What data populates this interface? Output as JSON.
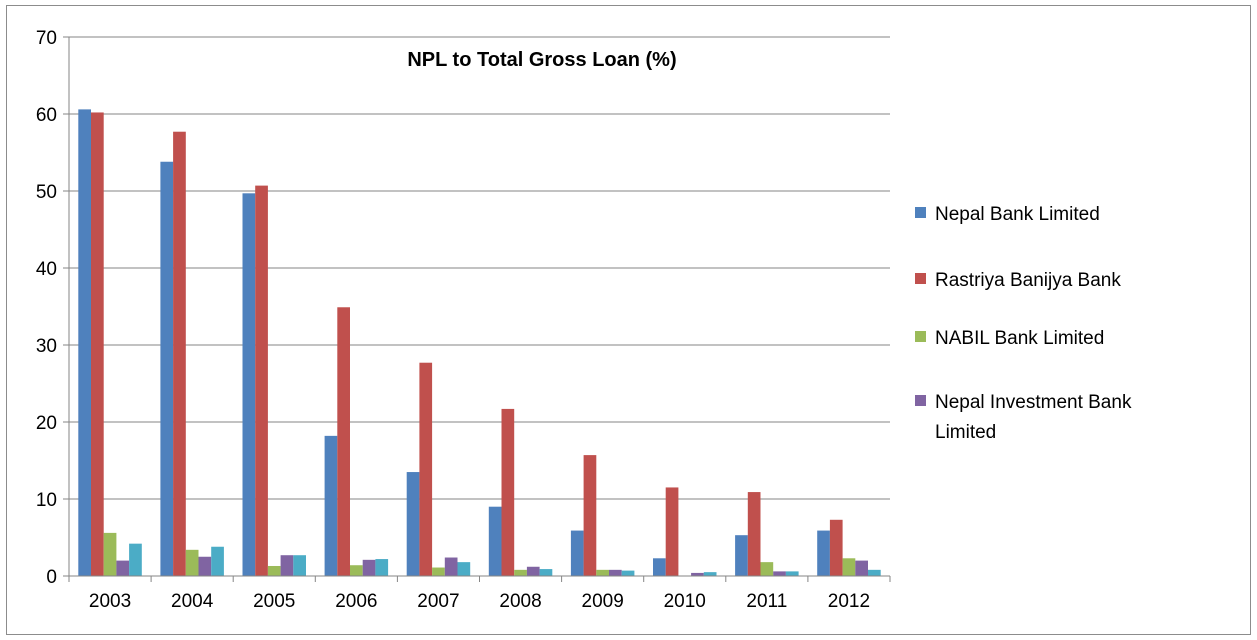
{
  "chart_data": {
    "type": "bar",
    "title": "NPL to Total Gross Loan (%)",
    "xlabel": "",
    "ylabel": "",
    "categories": [
      "2003",
      "2004",
      "2005",
      "2006",
      "2007",
      "2008",
      "2009",
      "2010",
      "2011",
      "2012"
    ],
    "ylim": [
      0,
      70
    ],
    "yticks": [
      "0",
      "10",
      "20",
      "30",
      "40",
      "50",
      "60",
      "70"
    ],
    "grid": "horizontal",
    "legend_position": "right",
    "series": [
      {
        "name": "Nepal Bank Limited",
        "color": "#4F81BD",
        "values": [
          60.6,
          53.8,
          49.7,
          18.2,
          13.5,
          9.0,
          5.9,
          2.3,
          5.3,
          5.9
        ]
      },
      {
        "name": "Rastriya Banijya Bank",
        "color": "#C0504D",
        "values": [
          60.2,
          57.7,
          50.7,
          34.9,
          27.7,
          21.7,
          15.7,
          11.5,
          10.9,
          7.3
        ]
      },
      {
        "name": "NABIL Bank Limited",
        "color": "#9BBB59",
        "values": [
          5.6,
          3.4,
          1.3,
          1.4,
          1.1,
          0.8,
          0.8,
          0.0,
          1.8,
          2.3
        ]
      },
      {
        "name": "Nepal Investment Bank Limited",
        "legend_lines": [
          "Nepal Investment Bank",
          "Limited"
        ],
        "color": "#8064A2",
        "values": [
          2.0,
          2.5,
          2.7,
          2.1,
          2.4,
          1.2,
          0.8,
          0.4,
          0.6,
          2.0
        ]
      },
      {
        "name": "",
        "color": "#4BACC6",
        "values": [
          4.2,
          3.8,
          2.7,
          2.2,
          1.8,
          0.9,
          0.7,
          0.5,
          0.6,
          0.8
        ]
      }
    ]
  }
}
